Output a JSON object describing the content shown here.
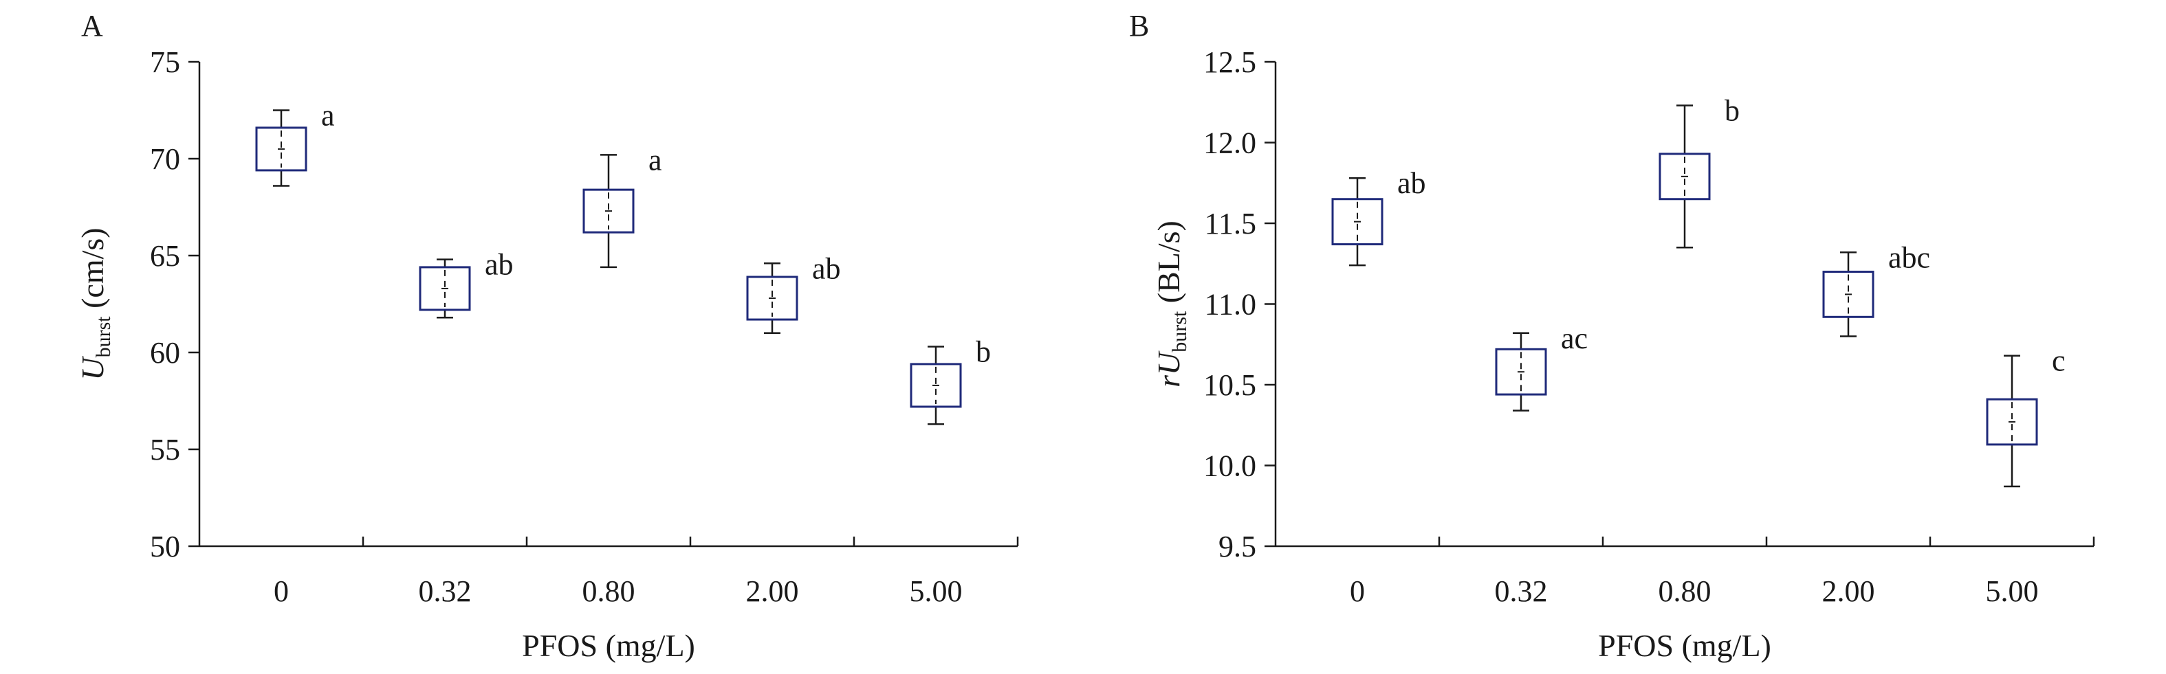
{
  "chart_data": [
    {
      "panel_label": "A",
      "type": "box",
      "xlabel": "PFOS (mg/L)",
      "ylabel": {
        "prefix": "",
        "main": "U",
        "sub": "burst",
        "unit": "(cm/s)"
      },
      "ylim": [
        50,
        75
      ],
      "yticks": [
        "50",
        "55",
        "60",
        "65",
        "70",
        "75"
      ],
      "categories": [
        "0",
        "0.32",
        "0.80",
        "2.00",
        "5.00"
      ],
      "series": [
        {
          "mean": [
            70.5,
            63.3,
            67.3,
            62.8,
            58.3
          ],
          "box_low": [
            69.4,
            62.2,
            66.2,
            61.7,
            57.2
          ],
          "box_high": [
            71.6,
            64.4,
            68.4,
            63.9,
            59.4
          ],
          "whisker_low": [
            68.6,
            61.8,
            64.4,
            61.0,
            56.3
          ],
          "whisker_high": [
            72.5,
            64.8,
            70.2,
            64.6,
            60.3
          ],
          "letters": [
            "a",
            "ab",
            "a",
            "ab",
            "b"
          ]
        }
      ],
      "grid": false
    },
    {
      "panel_label": "B",
      "type": "box",
      "xlabel": "PFOS (mg/L)",
      "ylabel": {
        "prefix": "r",
        "main": "U",
        "sub": "burst",
        "unit": "(BL/s)"
      },
      "ylim": [
        9.5,
        12.5
      ],
      "yticks": [
        "9.5",
        "10.0",
        "10.5",
        "11.0",
        "11.5",
        "12.0",
        "12.5"
      ],
      "categories": [
        "0",
        "0.32",
        "0.80",
        "2.00",
        "5.00"
      ],
      "series": [
        {
          "mean": [
            11.51,
            10.58,
            11.79,
            11.06,
            10.27
          ],
          "box_low": [
            11.37,
            10.44,
            11.65,
            10.92,
            10.13
          ],
          "box_high": [
            11.65,
            10.72,
            11.93,
            11.2,
            10.41
          ],
          "whisker_low": [
            11.24,
            10.34,
            11.35,
            10.8,
            9.87
          ],
          "whisker_high": [
            11.78,
            10.82,
            12.23,
            11.32,
            10.68
          ],
          "letters": [
            "ab",
            "ac",
            "b",
            "abc",
            "c"
          ]
        }
      ],
      "grid": false
    }
  ],
  "colors": {
    "box": "#1f2a7a",
    "axis": "#1a1a1a"
  }
}
